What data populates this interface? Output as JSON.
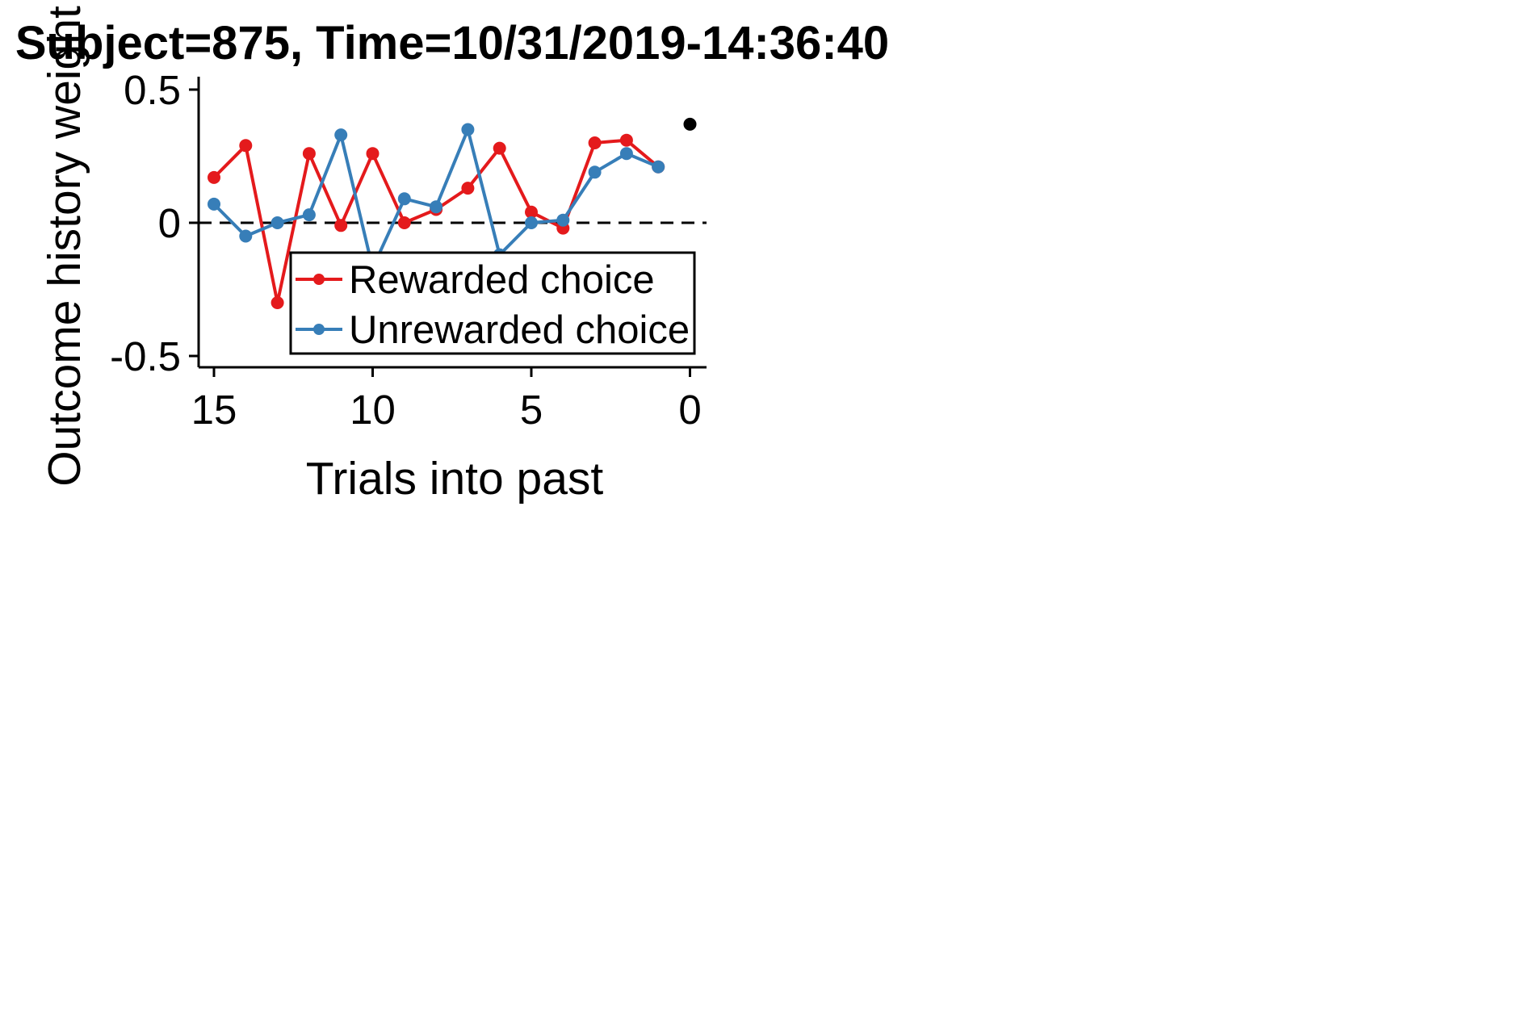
{
  "chart_data": {
    "type": "line",
    "title": "Subject=875, Time=10/31/2019-14:36:40",
    "xlabel": "Trials into past",
    "ylabel": "Outcome history weight",
    "xlim": [
      15.5,
      -0.5
    ],
    "ylim": [
      -0.55,
      0.55
    ],
    "xticks": [
      15,
      10,
      5,
      0
    ],
    "xtick_labels": [
      "15",
      "10",
      "5",
      "0"
    ],
    "yticks": [
      0.5,
      0,
      -0.5
    ],
    "ytick_labels": [
      "0.5",
      "0",
      "-0.5"
    ],
    "reference_line": {
      "y": 0,
      "style": "dashed",
      "color": "#000000"
    },
    "legend": {
      "position": "lower-right",
      "frame": true
    },
    "series": [
      {
        "name": "Rewarded choice",
        "color": "#e41a1c",
        "x": [
          15,
          14,
          13,
          12,
          11,
          10,
          9,
          8,
          7,
          6,
          5,
          4,
          3,
          2,
          1
        ],
        "y": [
          0.17,
          0.29,
          -0.3,
          0.26,
          -0.01,
          0.26,
          0.0,
          0.05,
          0.13,
          0.28,
          0.04,
          -0.02,
          0.3,
          0.31,
          0.21
        ]
      },
      {
        "name": "Unrewarded choice",
        "color": "#377eb8",
        "x": [
          15,
          14,
          13,
          12,
          11,
          10,
          9,
          8,
          7,
          6,
          5,
          4,
          3,
          2,
          1
        ],
        "y": [
          0.07,
          -0.05,
          0.0,
          0.03,
          0.33,
          -0.17,
          0.09,
          0.06,
          0.35,
          -0.12,
          0.0,
          0.01,
          0.19,
          0.26,
          0.21
        ]
      }
    ],
    "extra_points": [
      {
        "x": 0,
        "y": 0.37,
        "color": "#000000"
      }
    ]
  }
}
